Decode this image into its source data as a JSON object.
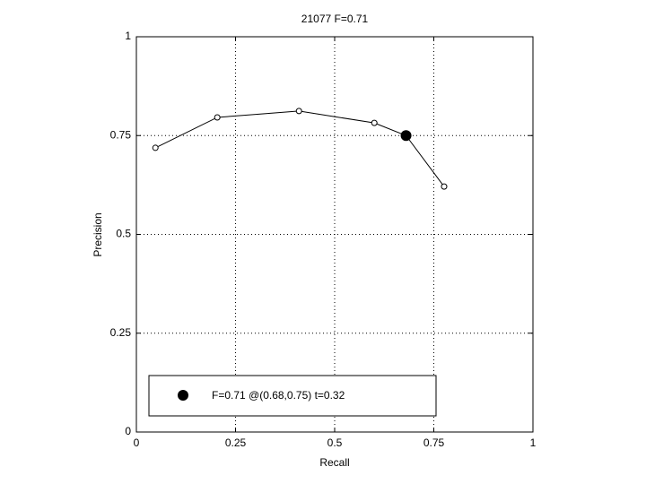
{
  "chart_data": {
    "type": "line",
    "title": "21077 F=0.71",
    "x_label": "Recall",
    "y_label": "Precision",
    "xlim": [
      0,
      1
    ],
    "ylim": [
      0,
      1
    ],
    "xticks": [
      0,
      0.25,
      0.5,
      0.75,
      1
    ],
    "yticks": [
      0,
      0.25,
      0.5,
      0.75,
      1
    ],
    "grid": true,
    "series": [
      {
        "color": "#000000",
        "x": [
          0.048,
          0.204,
          0.41,
          0.6,
          0.68,
          0.776
        ],
        "values": [
          0.719,
          0.796,
          0.812,
          0.782,
          0.75,
          0.621
        ]
      }
    ],
    "highlight": {
      "name": "F=0.71 @(0.68,0.75) t=0.32",
      "color": "#000000",
      "x": 0.68,
      "y": 0.75
    },
    "legend": "lower left"
  }
}
